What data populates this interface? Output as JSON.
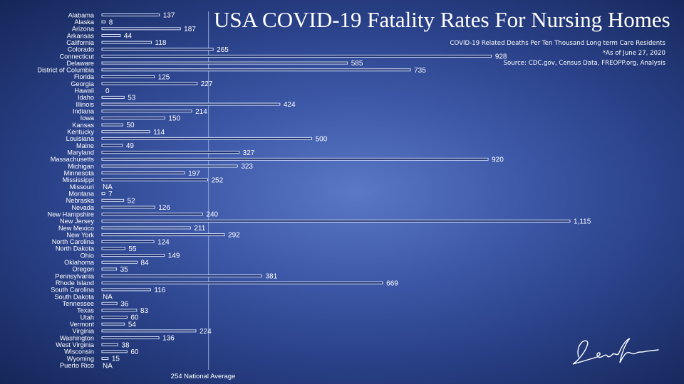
{
  "title": "USA COVID-19 Fatality Rates For Nursing Homes",
  "subtitle_lines": [
    "COVID-19 Related Deaths Per Ten Thousand Long term Care Residents",
    "*As of  June 27, 2020",
    "Source: CDC.gov, Census Data, FREOPP.org, Analysis"
  ],
  "chart_data": {
    "type": "bar",
    "orientation": "horizontal",
    "categories": [
      "Alabama",
      "Alaska",
      "Arizona",
      "Arkansas",
      "California",
      "Colorado",
      "Connecticut",
      "Delaware",
      "District of Columbia",
      "Florida",
      "Georgia",
      "Hawaii",
      "Idaho",
      "Illinois",
      "Indiana",
      "Iowa",
      "Kansas",
      "Kentucky",
      "Louisiana",
      "Maine",
      "Maryland",
      "Massachusetts",
      "Michigan",
      "Minnesota",
      "Mississippi",
      "Missouri",
      "Montana",
      "Nebraska",
      "Nevada",
      "New Hampshire",
      "New Jersey",
      "New Mexico",
      "New York",
      "North Carolina",
      "North Dakota",
      "Ohio",
      "Oklahoma",
      "Oregon",
      "Pennsylvania",
      "Rhode Island",
      "South Carolina",
      "South Dakota",
      "Tennessee",
      "Texas",
      "Utah",
      "Vermont",
      "Virginia",
      "Washington",
      "West Virginia",
      "Wisconsin",
      "Wyoming",
      "Puerto Rico"
    ],
    "values": [
      137,
      8,
      187,
      44,
      118,
      265,
      928,
      585,
      735,
      125,
      227,
      0,
      53,
      424,
      214,
      150,
      50,
      114,
      500,
      49,
      327,
      920,
      323,
      197,
      252,
      null,
      7,
      52,
      126,
      240,
      1115,
      211,
      292,
      124,
      55,
      149,
      84,
      35,
      381,
      669,
      116,
      null,
      36,
      83,
      60,
      54,
      224,
      136,
      38,
      60,
      15,
      null
    ],
    "value_labels": [
      "137",
      "8",
      "187",
      "44",
      "118",
      "265",
      "928",
      "585",
      "735",
      "125",
      "227",
      "0",
      "53",
      "424",
      "214",
      "150",
      "50",
      "114",
      "500",
      "49",
      "327",
      "920",
      "323",
      "197",
      "252",
      "NA",
      "7",
      "52",
      "126",
      "240",
      "1,115",
      "211",
      "292",
      "124",
      "55",
      "149",
      "84",
      "35",
      "381",
      "669",
      "116",
      "NA",
      "36",
      "83",
      "60",
      "54",
      "224",
      "136",
      "38",
      "60",
      "15",
      "NA"
    ],
    "reference_line": {
      "value": 254,
      "label": "254 National Average"
    },
    "xlim": [
      0,
      1115
    ],
    "grid": false,
    "colors": {
      "bar_fill": "#1c2f6a",
      "bar_stroke": "#d7e2ff",
      "text": "#ffffff",
      "ref_line": "#8fa3d6"
    }
  },
  "signature_text": "Leon Shirikov"
}
